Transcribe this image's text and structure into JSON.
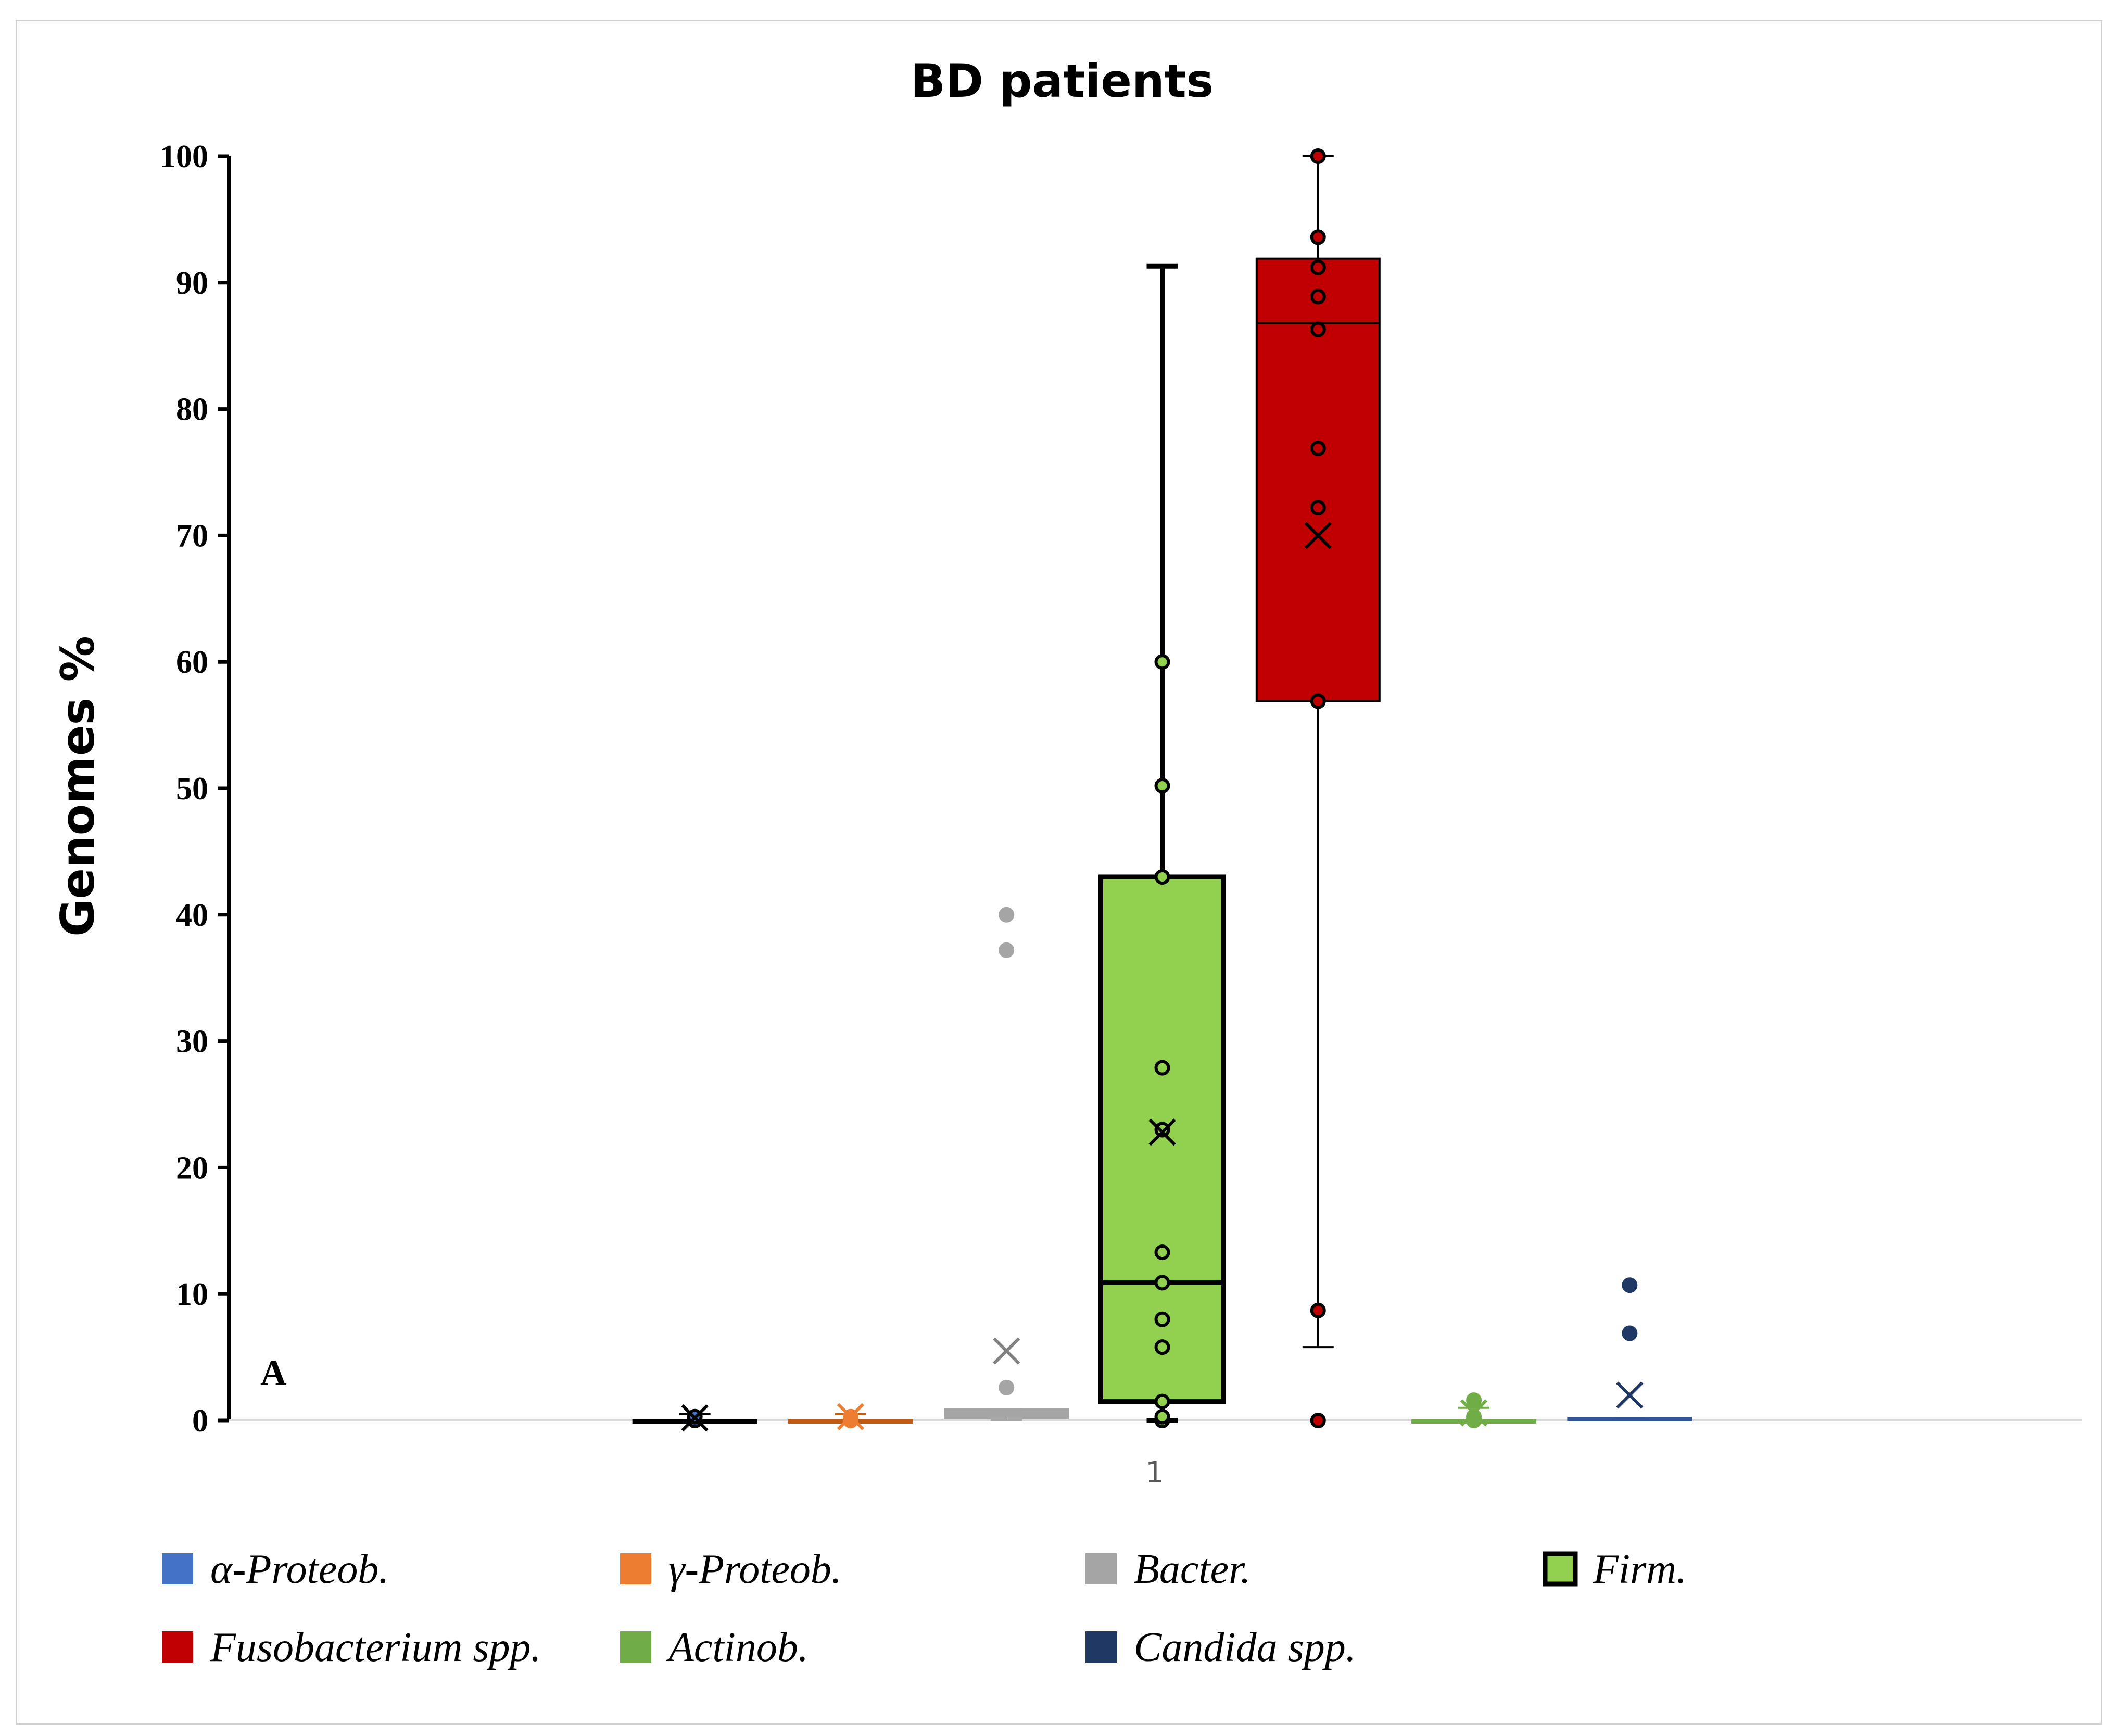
{
  "chart_data": {
    "type": "box",
    "title": "BD patients",
    "xlabel": "",
    "ylabel": "Genomes %",
    "ylim": [
      0,
      100
    ],
    "yticks": [
      0,
      10,
      20,
      30,
      40,
      50,
      60,
      70,
      80,
      90,
      100
    ],
    "categories": [
      "1"
    ],
    "panel_label": "A",
    "grid": false,
    "legend_position": "bottom",
    "series": [
      {
        "name": "α-Proteob.",
        "color": "#4472c4",
        "edge": "#000000",
        "min": 0,
        "q1": 0,
        "median": 0,
        "q3": 0,
        "max": 0.5,
        "mean": 0.2,
        "points": [
          0,
          0.3
        ]
      },
      {
        "name": "γ-Proteob.",
        "color": "#ed7d31",
        "edge": "#c55a11",
        "min": 0,
        "q1": 0,
        "median": 0,
        "q3": 0,
        "max": 0.5,
        "mean": 0.3,
        "points": [
          0,
          0.3
        ]
      },
      {
        "name": "Bacter.",
        "color": "#a5a5a5",
        "edge": "#a5a5a5",
        "min": 0,
        "q1": 0.2,
        "median": 0.4,
        "q3": 0.9,
        "max": 0.9,
        "mean": 5.5,
        "points": [
          2.6,
          37.2,
          40
        ]
      },
      {
        "name": "Firm.",
        "color": "#92d050",
        "edge": "#000000",
        "min": 0,
        "q1": 1.5,
        "median": 10.9,
        "q3": 43,
        "max": 91.3,
        "mean": 22.8,
        "points": [
          0,
          0.3,
          1.5,
          5.8,
          8,
          10.9,
          13.3,
          23,
          27.9,
          43,
          50.2,
          60
        ]
      },
      {
        "name": "Fusobacterium spp.",
        "color": "#c00000",
        "edge": "#000000",
        "min": 5.8,
        "q1": 56.9,
        "median": 86.8,
        "q3": 91.9,
        "max": 100,
        "mean": 70,
        "points": [
          0,
          8.7,
          56.9,
          72.2,
          76.9,
          86.3,
          88.9,
          91.2,
          93.6,
          100
        ]
      },
      {
        "name": "Actinob.",
        "color": "#70ad47",
        "edge": "#70ad47",
        "min": 0,
        "q1": 0,
        "median": 0,
        "q3": 0,
        "max": 1,
        "mean": 0.6,
        "points": [
          0,
          0.3,
          1.6
        ]
      },
      {
        "name": "Candida spp.",
        "color": "#203864",
        "edge": "#2f5597",
        "min": 0,
        "q1": 0,
        "median": 0.1,
        "q3": 0.2,
        "max": 0.2,
        "mean": 2,
        "points": [
          6.9,
          10.7
        ]
      }
    ]
  }
}
